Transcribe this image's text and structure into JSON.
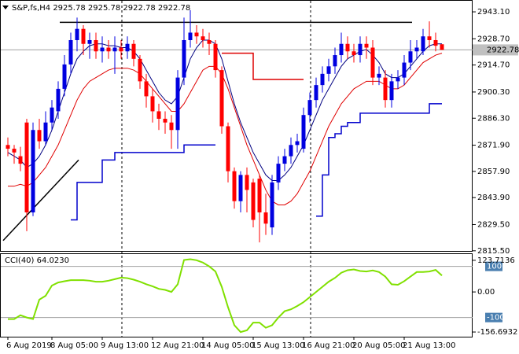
{
  "chart_data": {
    "type": "candlestick",
    "title": "S&P,fs,H4 2925.78 2925.78 2922.78 2922.78",
    "categories": [
      "6 Aug 2019",
      null,
      null,
      null,
      null,
      null,
      null,
      "8 Aug 05:00",
      null,
      null,
      null,
      null,
      null,
      null,
      null,
      "9 Aug 13:00",
      null,
      null,
      null,
      null,
      null,
      null,
      null,
      "12 Aug 21:00",
      null,
      null,
      null,
      null,
      null,
      null,
      null,
      "14 Aug 05:00",
      null,
      null,
      null,
      null,
      null,
      null,
      null,
      "15 Aug 13:00",
      null,
      null,
      null,
      null,
      null,
      null,
      null,
      "16 Aug 21:00",
      null,
      null,
      null,
      null,
      null,
      null,
      null,
      "20 Aug 05:00",
      null,
      null,
      null,
      null,
      null,
      null,
      null,
      "21 Aug 13:00",
      null,
      null,
      null,
      null,
      null,
      null
    ],
    "open": [
      2872,
      2870,
      2866,
      2884,
      2836,
      2880,
      2874,
      2884,
      2890,
      2902,
      2915,
      2928,
      2934,
      2926,
      2928,
      2922,
      2924,
      2922,
      2924,
      2922,
      2926,
      2918,
      2906,
      2898,
      2890,
      2886,
      2884,
      2880,
      2908,
      2928,
      2932,
      2930,
      2928,
      2926,
      2912,
      2882,
      2858,
      2842,
      2856,
      2852,
      2854,
      2836,
      2828,
      2852,
      2862,
      2866,
      2872,
      2870,
      2888,
      2896,
      2904,
      2910,
      2914,
      2920,
      2926,
      2922,
      2920,
      2926,
      2924,
      2908,
      2908,
      2896,
      2906,
      2908,
      2916,
      2922,
      2922,
      2930,
      2928,
      2925.78
    ],
    "high": [
      2876,
      2872,
      2871,
      2886,
      2884,
      2886,
      2890,
      2896,
      2906,
      2920,
      2932,
      2940,
      2936,
      2932,
      2932,
      2930,
      2928,
      2930,
      2928,
      2930,
      2928,
      2920,
      2910,
      2902,
      2894,
      2890,
      2888,
      2912,
      2940,
      2944,
      2936,
      2934,
      2932,
      2928,
      2914,
      2884,
      2860,
      2858,
      2860,
      2854,
      2856,
      2846,
      2856,
      2866,
      2870,
      2876,
      2878,
      2892,
      2900,
      2908,
      2914,
      2918,
      2924,
      2932,
      2930,
      2926,
      2930,
      2930,
      2928,
      2914,
      2912,
      2910,
      2912,
      2920,
      2928,
      2928,
      2934,
      2938,
      2932,
      2925.78
    ],
    "low": [
      2866,
      2862,
      2858,
      2826,
      2834,
      2870,
      2872,
      2880,
      2886,
      2898,
      2910,
      2922,
      2920,
      2918,
      2918,
      2916,
      2918,
      2910,
      2918,
      2918,
      2914,
      2902,
      2892,
      2884,
      2880,
      2878,
      2870,
      2870,
      2904,
      2924,
      2926,
      2924,
      2920,
      2908,
      2878,
      2852,
      2838,
      2836,
      2836,
      2828,
      2820,
      2824,
      2824,
      2848,
      2858,
      2862,
      2868,
      2868,
      2884,
      2892,
      2900,
      2906,
      2910,
      2916,
      2918,
      2916,
      2916,
      2918,
      2904,
      2904,
      2892,
      2892,
      2902,
      2904,
      2912,
      2918,
      2920,
      2924,
      2922,
      2922.78
    ],
    "close": [
      2870,
      2868,
      2862,
      2836,
      2880,
      2874,
      2884,
      2892,
      2902,
      2915,
      2928,
      2934,
      2926,
      2928,
      2922,
      2924,
      2922,
      2924,
      2922,
      2926,
      2918,
      2906,
      2898,
      2890,
      2886,
      2884,
      2880,
      2908,
      2928,
      2932,
      2930,
      2928,
      2926,
      2912,
      2882,
      2858,
      2842,
      2856,
      2848,
      2832,
      2836,
      2830,
      2852,
      2862,
      2866,
      2872,
      2874,
      2888,
      2896,
      2904,
      2910,
      2914,
      2920,
      2926,
      2922,
      2920,
      2926,
      2924,
      2908,
      2910,
      2896,
      2906,
      2908,
      2916,
      2922,
      2924,
      2930,
      2928,
      2925,
      2922.78
    ],
    "up_color": "#0000e0",
    "down_color": "#ff0000",
    "series": [
      {
        "color": "#000080",
        "style": "line",
        "values": [
          2868,
          2866,
          2864,
          2860,
          2862,
          2866,
          2872,
          2880,
          2890,
          2900,
          2910,
          2918,
          2922,
          2925,
          2926,
          2926,
          2925,
          2925,
          2924,
          2924,
          2922,
          2918,
          2912,
          2906,
          2900,
          2896,
          2894,
          2898,
          2908,
          2918,
          2924,
          2928,
          2928,
          2926,
          2918,
          2906,
          2894,
          2884,
          2876,
          2868,
          2862,
          2856,
          2853,
          2853,
          2856,
          2860,
          2866,
          2872,
          2880,
          2888,
          2896,
          2902,
          2908,
          2914,
          2918,
          2920,
          2922,
          2923,
          2920,
          2916,
          2910,
          2908,
          2908,
          2910,
          2914,
          2918,
          2922,
          2925,
          2926,
          2926
        ]
      },
      {
        "color": "#e00000",
        "style": "line",
        "values": [
          2850,
          2850,
          2851,
          2850,
          2852,
          2856,
          2860,
          2866,
          2872,
          2880,
          2888,
          2896,
          2902,
          2906,
          2908,
          2910,
          2912,
          2913,
          2913,
          2913,
          2912,
          2910,
          2906,
          2902,
          2898,
          2894,
          2890,
          2890,
          2894,
          2900,
          2906,
          2912,
          2914,
          2914,
          2910,
          2902,
          2892,
          2882,
          2872,
          2864,
          2856,
          2848,
          2842,
          2840,
          2840,
          2842,
          2846,
          2852,
          2858,
          2866,
          2874,
          2882,
          2888,
          2894,
          2898,
          2902,
          2904,
          2906,
          2906,
          2906,
          2904,
          2902,
          2902,
          2904,
          2908,
          2912,
          2916,
          2918,
          2920,
          2921
        ]
      },
      {
        "color": "#0000cc",
        "style": "step",
        "values": [
          null,
          null,
          null,
          null,
          null,
          null,
          null,
          null,
          null,
          null,
          2832,
          2852,
          2852,
          2852,
          2852,
          2864,
          2864,
          2868,
          2868,
          2868,
          2868,
          2868,
          2868,
          2868,
          2868,
          2868,
          2868,
          2868,
          2872,
          2872,
          2872,
          2872,
          2872,
          2872,
          null,
          null,
          null,
          null,
          null,
          null,
          null,
          null,
          null,
          null,
          null,
          null,
          null,
          null,
          null,
          2834,
          2856,
          2876,
          2878,
          2882,
          2884,
          2884,
          2889,
          2889,
          2889,
          2889,
          2889,
          2889,
          2889,
          2889,
          2889,
          2889,
          2889,
          2894,
          2894,
          2894
        ]
      },
      {
        "color": "#dd0000",
        "style": "step",
        "values": [
          null,
          null,
          null,
          null,
          null,
          null,
          null,
          null,
          null,
          null,
          null,
          null,
          null,
          null,
          null,
          null,
          null,
          null,
          null,
          null,
          null,
          null,
          null,
          null,
          null,
          null,
          null,
          null,
          null,
          null,
          null,
          null,
          null,
          null,
          2921,
          2921,
          2921,
          2921,
          2921,
          2907,
          2907,
          2907,
          2907,
          2907,
          2907,
          2907,
          2907,
          2907,
          null,
          null,
          null,
          null,
          null,
          null,
          null,
          null,
          null,
          null,
          null,
          null,
          null,
          null,
          null,
          null,
          null,
          null,
          null,
          null,
          null,
          null
        ]
      }
    ],
    "trendlines": [
      {
        "start_index": -0.75,
        "start": 2821,
        "end_index": 11.25,
        "end": 2864
      },
      {
        "start_index": 8.25,
        "start": 2937.5,
        "end_index": 64.25,
        "end": 2937.5
      }
    ],
    "last_price": 2922.78,
    "ylim": [
      2815,
      2949
    ],
    "yticks": [
      {
        "value": 2943.1,
        "label": "2943.10"
      },
      {
        "value": 2928.7,
        "label": "2928.70"
      },
      {
        "value": 2914.7,
        "label": "2914.70"
      },
      {
        "value": 2900.3,
        "label": "2900.30"
      },
      {
        "value": 2886.3,
        "label": "2886.30"
      },
      {
        "value": 2871.9,
        "label": "2871.90"
      },
      {
        "value": 2857.9,
        "label": "2857.90"
      },
      {
        "value": 2843.9,
        "label": "2843.90"
      },
      {
        "value": 2829.5,
        "label": "2829.50"
      },
      {
        "value": 2815.5,
        "label": "2815.50"
      }
    ],
    "indicator": {
      "label": "CCI(40) 64.0230",
      "color": "#80e000",
      "values": [
        -106,
        -106,
        -91,
        -100,
        -106,
        -30,
        -15,
        25,
        37,
        42,
        46,
        46,
        46,
        44,
        40,
        40,
        44,
        50,
        56,
        54,
        48,
        40,
        30,
        22,
        12,
        8,
        0,
        30,
        125,
        128,
        124,
        115,
        100,
        80,
        20,
        -60,
        -130,
        -157,
        -150,
        -120,
        -120,
        -140,
        -130,
        -100,
        -75,
        -68,
        -55,
        -40,
        -20,
        0,
        20,
        40,
        55,
        75,
        85,
        88,
        82,
        80,
        84,
        78,
        60,
        30,
        28,
        42,
        60,
        78,
        78,
        80,
        86,
        64.023
      ],
      "levels": [
        100,
        -100
      ],
      "ylim": [
        -175,
        148
      ],
      "yticks": [
        123.7136,
        {
          "value": 0,
          "label": "0.00"
        },
        -156.6932
      ]
    }
  }
}
